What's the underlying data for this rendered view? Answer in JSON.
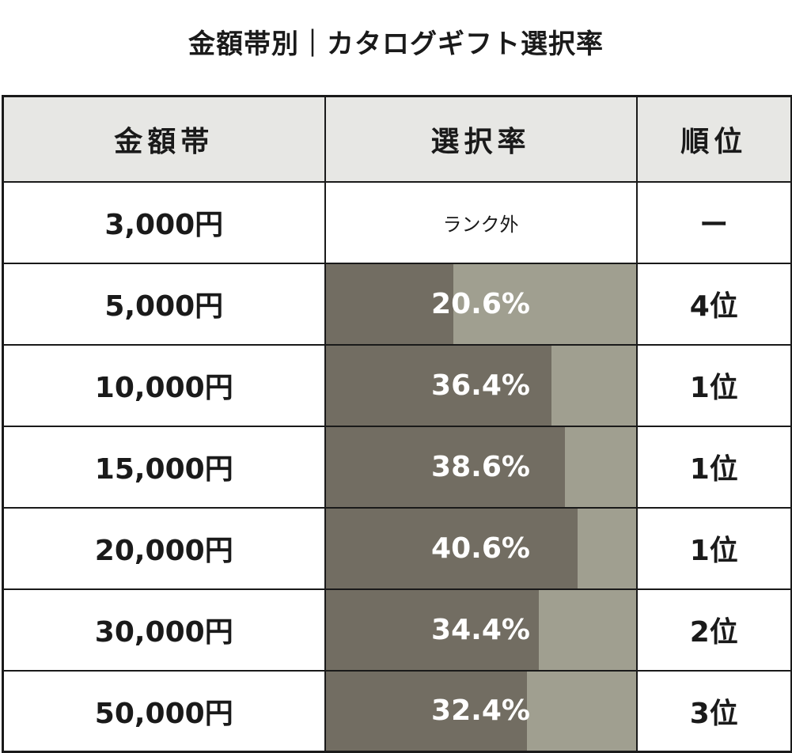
{
  "title": "金額帯別｜カタログギフト選択率",
  "chart_data": {
    "type": "table",
    "columns": [
      "金額帯",
      "選択率",
      "順位"
    ],
    "rows": [
      {
        "band": "3,000円",
        "rate_label": "ランク外",
        "rate": null,
        "rank": "ー"
      },
      {
        "band": "5,000円",
        "rate_label": "20.6%",
        "rate": 20.6,
        "rank": "4位"
      },
      {
        "band": "10,000円",
        "rate_label": "36.4%",
        "rate": 36.4,
        "rank": "1位"
      },
      {
        "band": "15,000円",
        "rate_label": "38.6%",
        "rate": 38.6,
        "rank": "1位"
      },
      {
        "band": "20,000円",
        "rate_label": "40.6%",
        "rate": 40.6,
        "rank": "1位"
      },
      {
        "band": "30,000円",
        "rate_label": "34.4%",
        "rate": 34.4,
        "rank": "2位"
      },
      {
        "band": "50,000円",
        "rate_label": "32.4%",
        "rate": 32.4,
        "rank": "3位"
      }
    ],
    "bar_scale_max": 50,
    "colors": {
      "bar_fill": "#726d62",
      "bar_track": "#a09f90",
      "header_bg": "#e7e7e4"
    }
  }
}
